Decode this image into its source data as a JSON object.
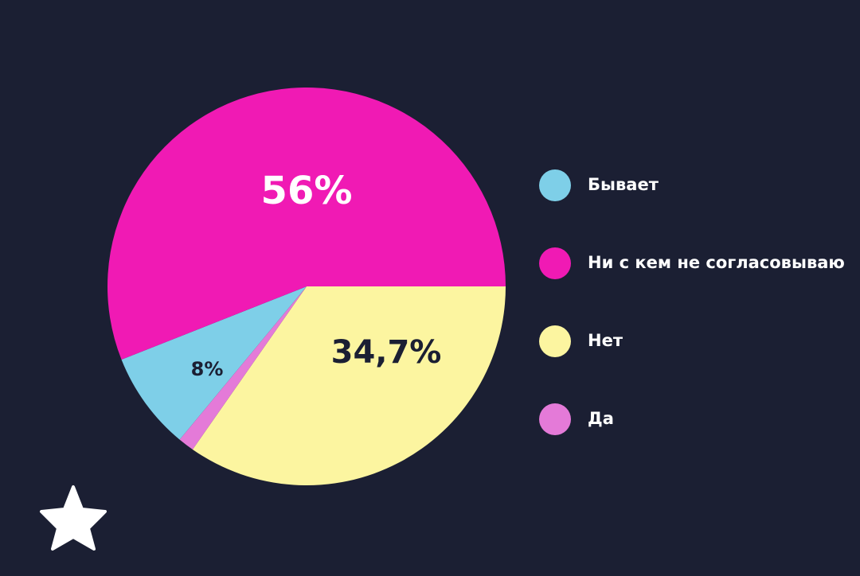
{
  "chart_data": {
    "type": "pie",
    "categories": [
      "Бывает",
      "Ни с кем не согласовываю",
      "Нет",
      "Да"
    ],
    "values": [
      8,
      56,
      34.7,
      1.3
    ],
    "value_labels": [
      "8%",
      "56%",
      "34,7%",
      null
    ],
    "colors": [
      "#7ecfe8",
      "#f01ab4",
      "#fcf5a0",
      "#e47ad8"
    ],
    "legend": "right"
  }
}
